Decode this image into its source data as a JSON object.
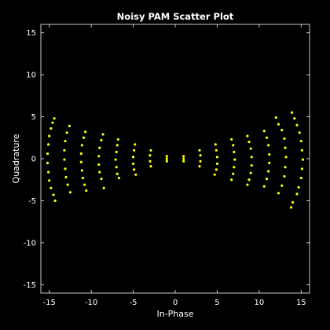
{
  "chart_data": {
    "type": "scatter",
    "title": "Noisy PAM Scatter Plot",
    "xlabel": "In-Phase",
    "ylabel": "Quadrature",
    "xlim": [
      -16,
      16
    ],
    "ylim": [
      -16,
      16
    ],
    "xticks": [
      -15,
      -10,
      -5,
      0,
      5,
      10,
      15
    ],
    "yticks": [
      -15,
      -10,
      -5,
      0,
      5,
      10,
      15
    ],
    "xtick_labels": [
      "-15",
      "-10",
      "-5",
      "0",
      "5",
      "10",
      "15"
    ],
    "ytick_labels": [
      "-15",
      "-10",
      "-5",
      "0",
      "5",
      "10",
      "15"
    ],
    "grid": false,
    "legend": "none",
    "colors": {
      "background": "#000000",
      "axes": "#c8c8c8",
      "text": "#ffffff",
      "points": "#ffff00"
    },
    "series": [
      {
        "symbol_levels": [
          -15,
          -13,
          -11,
          -9,
          -7,
          -5,
          -3,
          -1,
          1,
          3,
          5,
          7,
          9,
          11,
          13,
          15
        ],
        "points": [
          {
            "x": -14.4,
            "y": 4.8
          },
          {
            "x": -14.6,
            "y": 4.3
          },
          {
            "x": -14.8,
            "y": 3.6
          },
          {
            "x": -15.0,
            "y": 2.7
          },
          {
            "x": -15.1,
            "y": 1.7
          },
          {
            "x": -15.2,
            "y": 0.6
          },
          {
            "x": -15.2,
            "y": -0.5
          },
          {
            "x": -15.1,
            "y": -1.6
          },
          {
            "x": -15.0,
            "y": -2.6
          },
          {
            "x": -14.8,
            "y": -3.5
          },
          {
            "x": -14.5,
            "y": -4.3
          },
          {
            "x": -14.3,
            "y": -5.0
          },
          {
            "x": -12.6,
            "y": 3.9
          },
          {
            "x": -12.9,
            "y": 3.1
          },
          {
            "x": -13.1,
            "y": 2.1
          },
          {
            "x": -13.2,
            "y": 1.0
          },
          {
            "x": -13.2,
            "y": -0.1
          },
          {
            "x": -13.1,
            "y": -1.2
          },
          {
            "x": -13.0,
            "y": -2.2
          },
          {
            "x": -12.8,
            "y": -3.1
          },
          {
            "x": -12.5,
            "y": -4.0
          },
          {
            "x": -10.7,
            "y": 3.2
          },
          {
            "x": -10.9,
            "y": 2.5
          },
          {
            "x": -11.1,
            "y": 1.6
          },
          {
            "x": -11.2,
            "y": 0.6
          },
          {
            "x": -11.2,
            "y": -0.4
          },
          {
            "x": -11.1,
            "y": -1.4
          },
          {
            "x": -11.0,
            "y": -2.3
          },
          {
            "x": -10.8,
            "y": -3.1
          },
          {
            "x": -10.6,
            "y": -3.8
          },
          {
            "x": -8.6,
            "y": 2.9
          },
          {
            "x": -8.8,
            "y": 2.2
          },
          {
            "x": -9.0,
            "y": 1.3
          },
          {
            "x": -9.1,
            "y": 0.3
          },
          {
            "x": -9.1,
            "y": -0.7
          },
          {
            "x": -9.0,
            "y": -1.6
          },
          {
            "x": -8.8,
            "y": -2.4
          },
          {
            "x": -8.5,
            "y": -3.5
          },
          {
            "x": -6.8,
            "y": 2.3
          },
          {
            "x": -6.9,
            "y": 1.6
          },
          {
            "x": -7.0,
            "y": 0.8
          },
          {
            "x": -7.1,
            "y": -0.1
          },
          {
            "x": -7.0,
            "y": -1.0
          },
          {
            "x": -6.9,
            "y": -1.8
          },
          {
            "x": -6.7,
            "y": -2.3
          },
          {
            "x": -4.8,
            "y": 1.7
          },
          {
            "x": -4.9,
            "y": 1.0
          },
          {
            "x": -5.0,
            "y": 0.2
          },
          {
            "x": -5.0,
            "y": -0.6
          },
          {
            "x": -4.9,
            "y": -1.3
          },
          {
            "x": -4.7,
            "y": -1.9
          },
          {
            "x": -2.9,
            "y": 1.0
          },
          {
            "x": -3.0,
            "y": 0.4
          },
          {
            "x": -3.0,
            "y": -0.3
          },
          {
            "x": -2.9,
            "y": -0.9
          },
          {
            "x": -1.0,
            "y": 0.3
          },
          {
            "x": -1.0,
            "y": 0.0
          },
          {
            "x": -1.0,
            "y": -0.3
          },
          {
            "x": 1.0,
            "y": 0.3
          },
          {
            "x": 1.0,
            "y": 0.0
          },
          {
            "x": 1.0,
            "y": -0.3
          },
          {
            "x": 2.9,
            "y": 1.0
          },
          {
            "x": 3.0,
            "y": 0.4
          },
          {
            "x": 3.0,
            "y": -0.3
          },
          {
            "x": 2.9,
            "y": -0.9
          },
          {
            "x": 4.8,
            "y": 1.7
          },
          {
            "x": 4.9,
            "y": 1.0
          },
          {
            "x": 5.0,
            "y": 0.2
          },
          {
            "x": 5.0,
            "y": -0.6
          },
          {
            "x": 4.9,
            "y": -1.3
          },
          {
            "x": 4.7,
            "y": -1.9
          },
          {
            "x": 6.7,
            "y": 2.3
          },
          {
            "x": 6.9,
            "y": 1.6
          },
          {
            "x": 7.0,
            "y": 0.8
          },
          {
            "x": 7.1,
            "y": -0.1
          },
          {
            "x": 7.0,
            "y": -1.0
          },
          {
            "x": 6.9,
            "y": -1.8
          },
          {
            "x": 6.7,
            "y": -2.5
          },
          {
            "x": 8.6,
            "y": 2.7
          },
          {
            "x": 8.8,
            "y": 2.0
          },
          {
            "x": 9.0,
            "y": 1.2
          },
          {
            "x": 9.1,
            "y": 0.2
          },
          {
            "x": 9.1,
            "y": -0.8
          },
          {
            "x": 9.0,
            "y": -1.7
          },
          {
            "x": 8.8,
            "y": -2.5
          },
          {
            "x": 8.6,
            "y": -3.1
          },
          {
            "x": 10.6,
            "y": 3.3
          },
          {
            "x": 10.9,
            "y": 2.5
          },
          {
            "x": 11.1,
            "y": 1.6
          },
          {
            "x": 11.2,
            "y": 0.5
          },
          {
            "x": 11.2,
            "y": -0.5
          },
          {
            "x": 11.1,
            "y": -1.5
          },
          {
            "x": 10.9,
            "y": -2.4
          },
          {
            "x": 10.6,
            "y": -3.3
          },
          {
            "x": 12.0,
            "y": 4.9
          },
          {
            "x": 12.3,
            "y": 4.1
          },
          {
            "x": 12.7,
            "y": 3.4
          },
          {
            "x": 13.0,
            "y": 2.4
          },
          {
            "x": 13.1,
            "y": 1.3
          },
          {
            "x": 13.2,
            "y": 0.2
          },
          {
            "x": 13.1,
            "y": -1.0
          },
          {
            "x": 13.0,
            "y": -2.1
          },
          {
            "x": 12.7,
            "y": -3.2
          },
          {
            "x": 12.3,
            "y": -4.1
          },
          {
            "x": 13.9,
            "y": 5.5
          },
          {
            "x": 14.2,
            "y": 4.8
          },
          {
            "x": 14.5,
            "y": 4.0
          },
          {
            "x": 14.8,
            "y": 3.1
          },
          {
            "x": 15.0,
            "y": 2.1
          },
          {
            "x": 15.1,
            "y": 1.0
          },
          {
            "x": 15.2,
            "y": -0.1
          },
          {
            "x": 15.1,
            "y": -1.2
          },
          {
            "x": 15.0,
            "y": -2.3
          },
          {
            "x": 14.7,
            "y": -3.4
          },
          {
            "x": 14.5,
            "y": -4.2
          },
          {
            "x": 14.0,
            "y": -5.2
          },
          {
            "x": 13.8,
            "y": -5.8
          }
        ]
      }
    ]
  }
}
